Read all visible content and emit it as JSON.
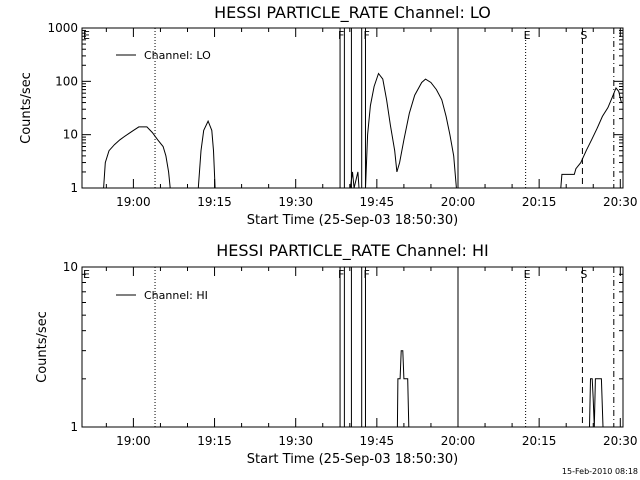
{
  "footer": {
    "timestamp": "15-Feb-2010 08:18"
  },
  "chart_data": [
    {
      "type": "line",
      "title": "HESSI PARTICLE_RATE Channel: LO",
      "xlabel": "Start Time (25-Sep-03 18:50:30)",
      "ylabel": "Counts/sec",
      "x_unit": "minutes after 18:50:30",
      "xlim": [
        0,
        100
      ],
      "x_ticks": [
        {
          "x": 9.5,
          "label": "19:00"
        },
        {
          "x": 24.5,
          "label": "19:15"
        },
        {
          "x": 39.5,
          "label": "19:30"
        },
        {
          "x": 54.5,
          "label": "19:45"
        },
        {
          "x": 69.5,
          "label": "20:00"
        },
        {
          "x": 84.5,
          "label": "20:15"
        },
        {
          "x": 99.5,
          "label": "20:30"
        }
      ],
      "y_scale": "log",
      "ylim": [
        1,
        1000
      ],
      "y_ticks": [
        {
          "y": 1,
          "label": "1"
        },
        {
          "y": 10,
          "label": "10"
        },
        {
          "y": 100,
          "label": "100"
        },
        {
          "y": 1000,
          "label": "1000"
        }
      ],
      "legend": {
        "position": "top-left",
        "entries": [
          "Channel: LO"
        ]
      },
      "series": [
        {
          "name": "Channel: LO",
          "segments": [
            [
              [
                4.0,
                1
              ],
              [
                4.3,
                3
              ],
              [
                5.0,
                5
              ],
              [
                6.0,
                6.5
              ],
              [
                7.0,
                8
              ],
              [
                8.0,
                9.5
              ],
              [
                9.5,
                12
              ],
              [
                10.5,
                14
              ],
              [
                12.0,
                14
              ],
              [
                13.0,
                11
              ],
              [
                14.0,
                8
              ],
              [
                15.0,
                6
              ],
              [
                15.5,
                4
              ],
              [
                16.0,
                2
              ],
              [
                16.3,
                1
              ]
            ],
            [
              [
                21.5,
                1
              ],
              [
                22.0,
                5
              ],
              [
                22.5,
                12
              ],
              [
                23.3,
                18
              ],
              [
                24.0,
                12
              ],
              [
                24.3,
                5
              ],
              [
                24.6,
                1
              ]
            ],
            [
              [
                49.6,
                1
              ],
              [
                50.0,
                2
              ],
              [
                50.3,
                1
              ],
              [
                51.0,
                2
              ],
              [
                51.2,
                1
              ]
            ],
            [
              [
                52.4,
                1
              ],
              [
                52.8,
                10
              ],
              [
                53.3,
                35
              ],
              [
                54.0,
                80
              ],
              [
                54.8,
                140
              ],
              [
                55.6,
                110
              ],
              [
                56.3,
                45
              ],
              [
                57.0,
                15
              ],
              [
                57.8,
                5
              ],
              [
                58.2,
                2
              ],
              [
                58.7,
                3
              ],
              [
                59.5,
                8
              ],
              [
                60.5,
                25
              ],
              [
                61.5,
                55
              ],
              [
                62.8,
                95
              ],
              [
                63.5,
                110
              ],
              [
                64.5,
                95
              ],
              [
                65.5,
                70
              ],
              [
                66.5,
                45
              ],
              [
                67.3,
                22
              ],
              [
                68.0,
                10
              ],
              [
                68.7,
                4
              ],
              [
                69.2,
                1
              ]
            ],
            [
              [
                88.5,
                1
              ],
              [
                88.7,
                1.8
              ],
              [
                91.0,
                1.8
              ],
              [
                91.3,
                2.3
              ],
              [
                92.2,
                3
              ],
              [
                93.2,
                5
              ],
              [
                94.2,
                8
              ],
              [
                95.2,
                13
              ],
              [
                96.2,
                22
              ],
              [
                97.2,
                32
              ],
              [
                98.0,
                50
              ],
              [
                98.7,
                75
              ],
              [
                99.2,
                65
              ],
              [
                99.7,
                40
              ]
            ]
          ]
        }
      ],
      "event_lines": [
        {
          "x": 13.5,
          "label": "",
          "style": "dotted"
        },
        {
          "x": 47.7,
          "label": "F",
          "style": "solid"
        },
        {
          "x": 48.5,
          "label": "",
          "style": "solid"
        },
        {
          "x": 49.8,
          "label": "",
          "style": "solid"
        },
        {
          "x": 51.7,
          "label": "",
          "style": "solid"
        },
        {
          "x": 52.4,
          "label": "F",
          "style": "solid"
        },
        {
          "x": 69.5,
          "label": "",
          "style": "solid"
        },
        {
          "x": 82.0,
          "label": "E",
          "style": "dotted"
        },
        {
          "x": 92.5,
          "label": "S",
          "style": "dashed"
        },
        {
          "x": 98.3,
          "label": "",
          "style": "dashdot"
        }
      ],
      "plot_label": {
        "text": "E",
        "position": "top-left"
      }
    },
    {
      "type": "line",
      "title": "HESSI PARTICLE_RATE Channel: HI",
      "xlabel": "Start Time (25-Sep-03 18:50:30)",
      "ylabel": "Counts/sec",
      "x_unit": "minutes after 18:50:30",
      "xlim": [
        0,
        100
      ],
      "x_ticks": [
        {
          "x": 9.5,
          "label": "19:00"
        },
        {
          "x": 24.5,
          "label": "19:15"
        },
        {
          "x": 39.5,
          "label": "19:30"
        },
        {
          "x": 54.5,
          "label": "19:45"
        },
        {
          "x": 69.5,
          "label": "20:00"
        },
        {
          "x": 84.5,
          "label": "20:15"
        },
        {
          "x": 99.5,
          "label": "20:30"
        }
      ],
      "y_scale": "log",
      "ylim": [
        1,
        10
      ],
      "y_ticks": [
        {
          "y": 1,
          "label": "1"
        },
        {
          "y": 10,
          "label": "10"
        }
      ],
      "legend": {
        "position": "top-left",
        "entries": [
          "Channel: HI"
        ]
      },
      "series": [
        {
          "name": "Channel: HI",
          "segments": [
            [
              [
                58.3,
                1
              ],
              [
                58.4,
                2
              ],
              [
                58.8,
                2
              ],
              [
                59.0,
                3
              ],
              [
                59.3,
                3
              ],
              [
                59.5,
                2
              ],
              [
                60.2,
                2
              ],
              [
                60.4,
                1
              ]
            ],
            [
              [
                93.8,
                1
              ],
              [
                94.0,
                2
              ],
              [
                94.3,
                2
              ],
              [
                94.5,
                1.5
              ],
              [
                94.7,
                1
              ],
              [
                94.9,
                2
              ],
              [
                96.0,
                2
              ],
              [
                96.3,
                1
              ]
            ]
          ]
        }
      ],
      "event_lines": [
        {
          "x": 13.5,
          "label": "",
          "style": "dotted"
        },
        {
          "x": 47.7,
          "label": "F",
          "style": "solid"
        },
        {
          "x": 48.5,
          "label": "",
          "style": "solid"
        },
        {
          "x": 49.8,
          "label": "",
          "style": "solid"
        },
        {
          "x": 51.7,
          "label": "",
          "style": "solid"
        },
        {
          "x": 52.4,
          "label": "F",
          "style": "solid"
        },
        {
          "x": 69.5,
          "label": "",
          "style": "solid"
        },
        {
          "x": 82.0,
          "label": "E",
          "style": "dotted"
        },
        {
          "x": 92.5,
          "label": "S",
          "style": "dashed"
        },
        {
          "x": 98.3,
          "label": "",
          "style": "dashdot"
        }
      ],
      "plot_label": {
        "text": "E",
        "position": "top-left"
      }
    }
  ]
}
